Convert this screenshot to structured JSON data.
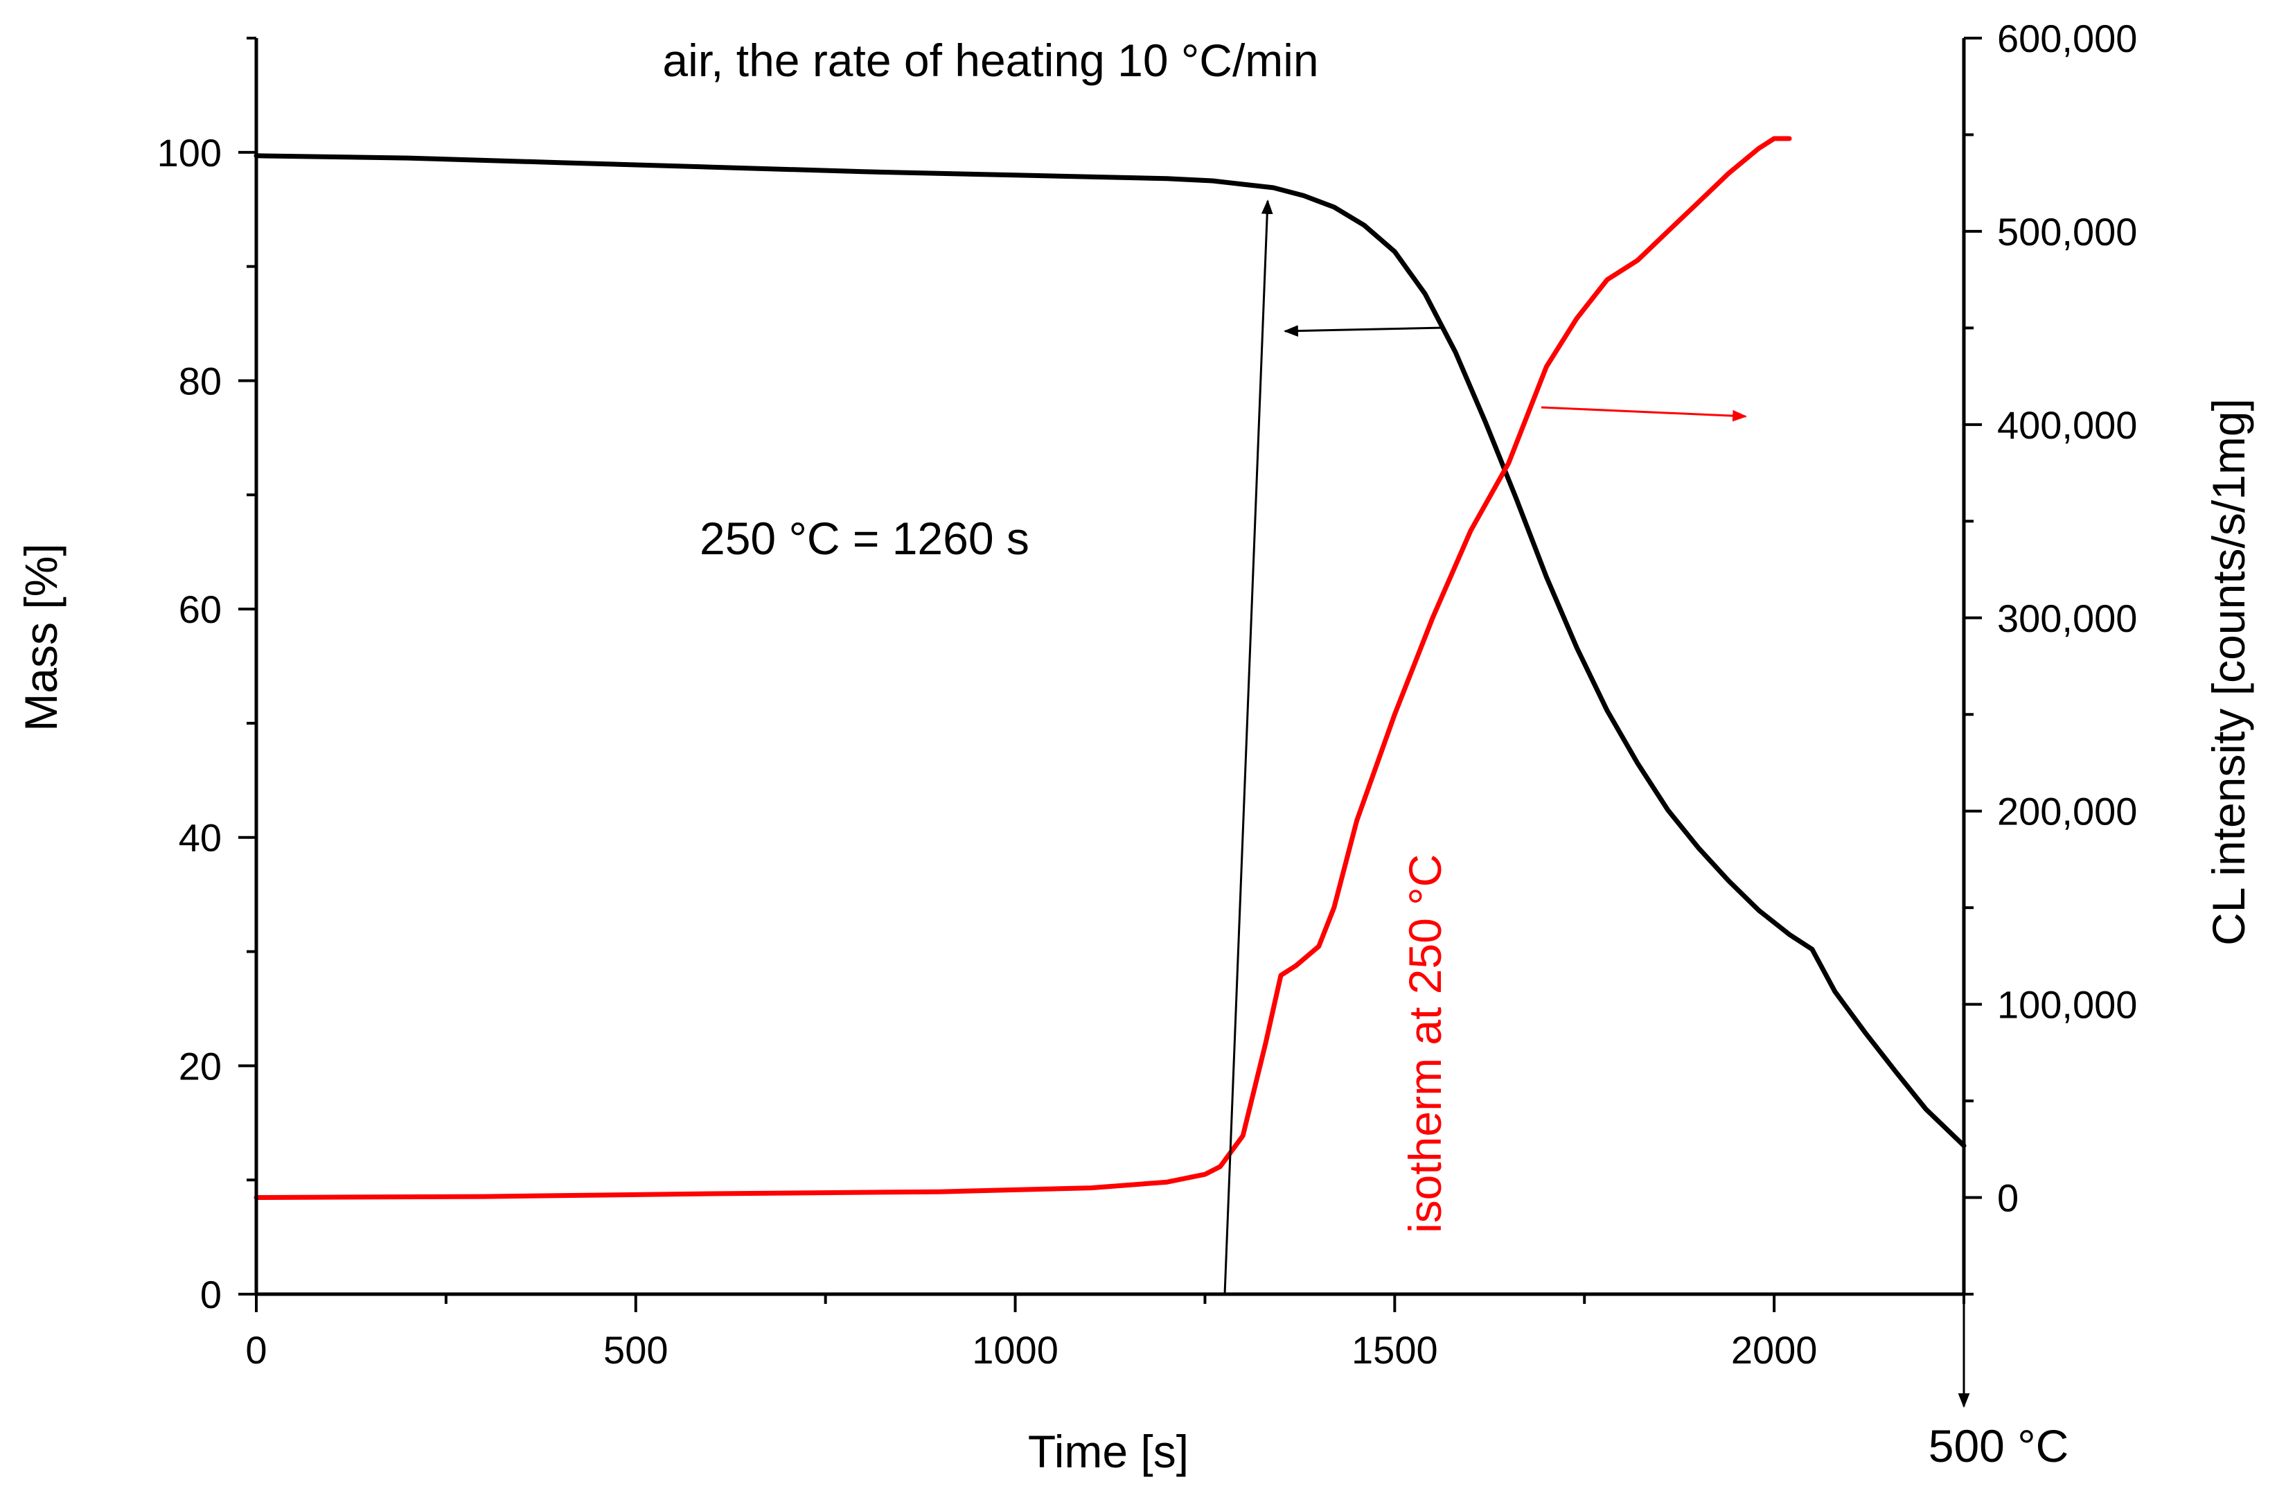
{
  "colors": {
    "mass": "#000000",
    "cl": "#ff0000",
    "axis": "#000000",
    "background": "#ffffff"
  },
  "chart_data": {
    "type": "line",
    "title": "air, the rate of heating 10 °C/min",
    "xlabel": "Time [s]",
    "ylabel_left": "Mass [%]",
    "ylabel_right": "CL intensity [counts/s/1mg]",
    "xlim": [
      0,
      2250
    ],
    "ylim_left": [
      0,
      110
    ],
    "ylim_right": [
      -50000,
      600000
    ],
    "x_ticks": [
      0,
      500,
      1000,
      1500,
      2000
    ],
    "x_tick_labels": [
      "0",
      "500",
      "1000",
      "1500",
      "2000"
    ],
    "y_left_ticks": [
      0,
      20,
      40,
      60,
      80,
      100
    ],
    "y_left_tick_labels": [
      "0",
      "20",
      "40",
      "60",
      "80",
      "100"
    ],
    "y_right_ticks": [
      0,
      100000,
      200000,
      300000,
      400000,
      500000,
      600000
    ],
    "y_right_tick_labels": [
      "0",
      "100,000",
      "200,000",
      "300,000",
      "400,000",
      "500,000",
      "600,000"
    ],
    "grid": false,
    "series": [
      {
        "name": "Mass",
        "axis": "left",
        "x": [
          0,
          200,
          400,
          600,
          800,
          1000,
          1200,
          1260,
          1300,
          1340,
          1380,
          1420,
          1460,
          1500,
          1540,
          1580,
          1620,
          1660,
          1700,
          1740,
          1780,
          1820,
          1860,
          1900,
          1940,
          1980,
          2020,
          2050,
          2080,
          2120,
          2160,
          2200,
          2250
        ],
        "y": [
          99.7,
          99.5,
          99.1,
          98.7,
          98.3,
          98.0,
          97.7,
          97.5,
          97.2,
          96.9,
          96.2,
          95.2,
          93.6,
          91.3,
          87.6,
          82.5,
          76.3,
          69.7,
          62.8,
          56.6,
          51.1,
          46.5,
          42.4,
          39.1,
          36.2,
          33.6,
          31.5,
          30.2,
          26.5,
          22.9,
          19.5,
          16.2,
          13.0
        ]
      },
      {
        "name": "CL intensity",
        "axis": "right",
        "x": [
          0,
          300,
          600,
          900,
          1100,
          1200,
          1250,
          1270,
          1300,
          1330,
          1350,
          1370,
          1400,
          1420,
          1450,
          1500,
          1550,
          1600,
          1650,
          1700,
          1740,
          1780,
          1820,
          1860,
          1900,
          1940,
          1980,
          2000,
          2020
        ],
        "y": [
          0,
          500,
          2000,
          3000,
          5000,
          8000,
          12000,
          16000,
          32000,
          80000,
          115000,
          120000,
          130000,
          150000,
          195000,
          250000,
          300000,
          345000,
          380000,
          430000,
          455000,
          475000,
          485000,
          500000,
          515000,
          530000,
          543000,
          548000,
          548000
        ]
      }
    ],
    "annotations": {
      "temperature_note": "250 °C = 1260 s",
      "isotherm_label": "isotherm at 250 °C",
      "end_temperature": "500 °C"
    }
  }
}
